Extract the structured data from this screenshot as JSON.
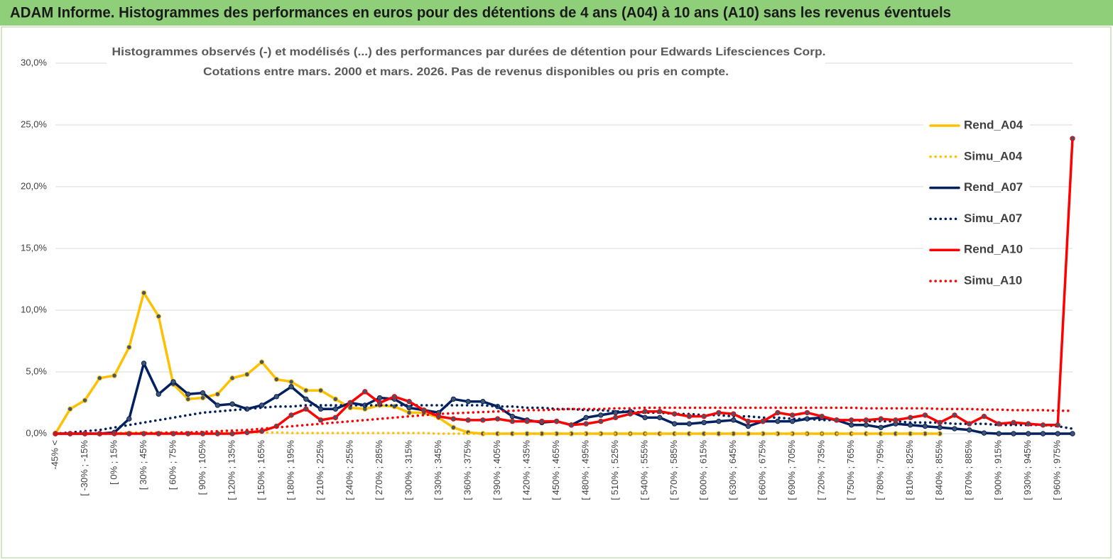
{
  "header": {
    "title": "ADAM Informe. Histogrammes des performances en euros pour des détentions de 4 ans (A04) à 10 ans (A10) sans les revenus éventuels"
  },
  "chart_data": {
    "type": "line",
    "title": "Histogrammes observés (-) et modélisés (...) des performances par durées de détention pour Edwards Lifesciences Corp.",
    "subtitle": "Cotations entre mars. 2000 et mars. 2026. Pas de revenus disponibles ou pris en compte.",
    "categories": [
      "-45% <",
      null,
      "[ -30% ; -15%",
      null,
      "[ 0% ; 15%",
      null,
      "[ 30% ; 45%",
      null,
      "[ 60% ; 75%",
      null,
      "[ 90% ; 105%",
      null,
      "[ 120% ; 135%",
      null,
      "[ 150% ; 165%",
      null,
      "[ 180% ; 195%",
      null,
      "[ 210% ; 225%",
      null,
      "[ 240% ; 255%",
      null,
      "[ 270% ; 285%",
      null,
      "[ 300% ; 315%",
      null,
      "[ 330% ; 345%",
      null,
      "[ 360% ; 375%",
      null,
      "[ 390% ; 405%",
      null,
      "[ 420% ; 435%",
      null,
      "[ 450% ; 465%",
      null,
      "[ 480% ; 495%",
      null,
      "[ 510% ; 525%",
      null,
      "[ 540% ; 555%",
      null,
      "[ 570% ; 585%",
      null,
      "[ 600% ; 615%",
      null,
      "[ 630% ; 645%",
      null,
      "[ 660% ; 675%",
      null,
      "[ 690% ; 705%",
      null,
      "[ 720% ; 735%",
      null,
      "[ 750% ; 765%",
      null,
      "[ 780% ; 795%",
      null,
      "[ 810% ; 825%",
      null,
      "[ 840% ; 855%",
      null,
      "[ 870% ; 885%",
      null,
      "[ 900% ; 915%",
      null,
      "[ 930% ; 945%",
      null,
      "[ 960% ; 975%",
      null
    ],
    "series": [
      {
        "name": "Rend_A04",
        "color": "#FFC000",
        "style": "solid",
        "values": [
          0,
          2.0,
          2.7,
          4.5,
          4.7,
          7.0,
          11.4,
          9.5,
          4.0,
          2.8,
          2.9,
          3.2,
          4.5,
          4.8,
          5.8,
          4.4,
          4.2,
          3.5,
          3.5,
          2.8,
          2.1,
          2.0,
          2.3,
          2.2,
          1.7,
          1.7,
          1.3,
          0.5,
          0.1,
          0,
          0,
          0,
          0,
          0,
          0,
          0,
          0,
          0,
          0,
          0,
          0,
          0,
          0,
          0,
          0,
          0,
          0,
          0,
          0,
          0,
          0,
          0,
          0,
          0,
          0,
          0,
          0,
          0,
          0,
          0,
          0,
          null,
          null,
          null,
          null,
          null,
          null,
          null,
          null,
          null
        ]
      },
      {
        "name": "Simu_A04",
        "color": "#FFC000",
        "style": "dotted",
        "values": [
          0,
          0,
          0,
          0,
          0.05,
          0.1,
          0.1,
          0.1,
          0.1,
          0.1,
          0.1,
          0.1,
          0.1,
          0.1,
          0.1,
          0.1,
          0.05,
          0.05,
          0.05,
          0.05,
          0.05,
          0.05,
          0.05,
          0.05,
          0.05,
          0.05,
          0,
          0,
          0,
          0,
          0,
          0,
          0,
          0,
          0,
          0,
          0,
          0,
          0,
          0,
          0,
          0,
          0,
          0,
          0,
          0,
          0,
          0,
          0,
          0,
          0,
          0,
          0,
          0,
          0,
          0,
          0,
          0,
          0,
          0,
          0,
          null,
          null,
          null,
          null,
          null,
          null,
          null,
          null,
          null
        ]
      },
      {
        "name": "Rend_A07",
        "color": "#002060",
        "style": "solid",
        "values": [
          0,
          0,
          0,
          0,
          0.1,
          1.2,
          5.7,
          3.2,
          4.2,
          3.2,
          3.3,
          2.3,
          2.4,
          2.0,
          2.3,
          3.0,
          3.8,
          2.8,
          2.0,
          2.0,
          2.5,
          2.3,
          2.9,
          2.8,
          2.1,
          1.9,
          1.7,
          2.8,
          2.6,
          2.6,
          2.2,
          1.4,
          1.1,
          0.9,
          1.0,
          0.7,
          1.3,
          1.5,
          1.7,
          1.8,
          1.3,
          1.3,
          0.8,
          0.8,
          0.9,
          1.0,
          1.1,
          0.6,
          1.0,
          1.0,
          1.0,
          1.2,
          1.3,
          1.1,
          0.7,
          0.7,
          0.5,
          0.8,
          0.7,
          0.6,
          0.5,
          0.4,
          0.3,
          0.05,
          0,
          0,
          0,
          0,
          0,
          0
        ]
      },
      {
        "name": "Simu_A07",
        "color": "#002060",
        "style": "dotted",
        "values": [
          0,
          0.1,
          0.2,
          0.3,
          0.5,
          0.7,
          0.9,
          1.1,
          1.3,
          1.5,
          1.7,
          1.8,
          1.9,
          2.0,
          2.1,
          2.2,
          2.2,
          2.3,
          2.3,
          2.3,
          2.3,
          2.3,
          2.3,
          2.3,
          2.3,
          2.3,
          2.3,
          2.3,
          2.3,
          2.3,
          2.2,
          2.2,
          2.1,
          2.1,
          2.0,
          2.0,
          1.9,
          1.9,
          1.8,
          1.8,
          1.7,
          1.7,
          1.6,
          1.6,
          1.5,
          1.5,
          1.4,
          1.4,
          1.3,
          1.3,
          1.2,
          1.2,
          1.1,
          1.1,
          1.1,
          1.0,
          1.0,
          1.0,
          0.9,
          0.9,
          0.9,
          0.8,
          0.8,
          0.8,
          0.7,
          0.7,
          0.7,
          0.7,
          0.6,
          0.4
        ]
      },
      {
        "name": "Rend_A10",
        "color": "#FF0000",
        "style": "solid",
        "values": [
          0,
          0,
          0,
          0,
          0,
          0,
          0,
          0,
          0,
          0,
          0,
          0,
          0,
          0.1,
          0.2,
          0.6,
          1.5,
          2.0,
          1.1,
          1.3,
          2.5,
          3.4,
          2.5,
          3.0,
          2.6,
          1.9,
          1.4,
          1.2,
          1.1,
          1.1,
          1.2,
          1.0,
          1.0,
          1.0,
          1.0,
          0.7,
          0.8,
          1.0,
          1.3,
          1.6,
          1.8,
          1.8,
          1.6,
          1.4,
          1.4,
          1.7,
          1.6,
          1.0,
          1.0,
          1.7,
          1.5,
          1.7,
          1.4,
          1.1,
          1.1,
          1.1,
          1.2,
          1.1,
          1.3,
          1.5,
          0.9,
          1.5,
          0.8,
          1.4,
          0.8,
          0.9,
          0.8,
          0.7,
          0.7,
          23.9
        ]
      },
      {
        "name": "Simu_A10",
        "color": "#FF0000",
        "style": "dotted",
        "values": [
          0,
          0,
          0,
          0,
          0,
          0,
          0.05,
          0.05,
          0.1,
          0.1,
          0.15,
          0.2,
          0.25,
          0.3,
          0.4,
          0.5,
          0.6,
          0.7,
          0.8,
          0.9,
          1.0,
          1.1,
          1.2,
          1.3,
          1.4,
          1.5,
          1.6,
          1.65,
          1.7,
          1.75,
          1.8,
          1.85,
          1.9,
          1.9,
          1.95,
          2.0,
          2.0,
          2.0,
          2.05,
          2.05,
          2.1,
          2.1,
          2.1,
          2.1,
          2.1,
          2.1,
          2.1,
          2.1,
          2.1,
          2.1,
          2.1,
          2.1,
          2.1,
          2.1,
          2.1,
          2.05,
          2.05,
          2.05,
          2.05,
          2.05,
          2.0,
          2.0,
          2.0,
          1.95,
          1.95,
          1.9,
          1.9,
          1.9,
          1.85,
          1.85
        ]
      }
    ],
    "ylim": [
      0,
      30
    ],
    "yticks": [
      {
        "value": 0,
        "label": "0,0%"
      },
      {
        "value": 5,
        "label": "5,0%"
      },
      {
        "value": 10,
        "label": "10,0%"
      },
      {
        "value": 15,
        "label": "15,0%"
      },
      {
        "value": 20,
        "label": "20,0%"
      },
      {
        "value": 25,
        "label": "25,0%"
      },
      {
        "value": 30,
        "label": "30,0%"
      }
    ],
    "grid": true,
    "legend": "right"
  }
}
